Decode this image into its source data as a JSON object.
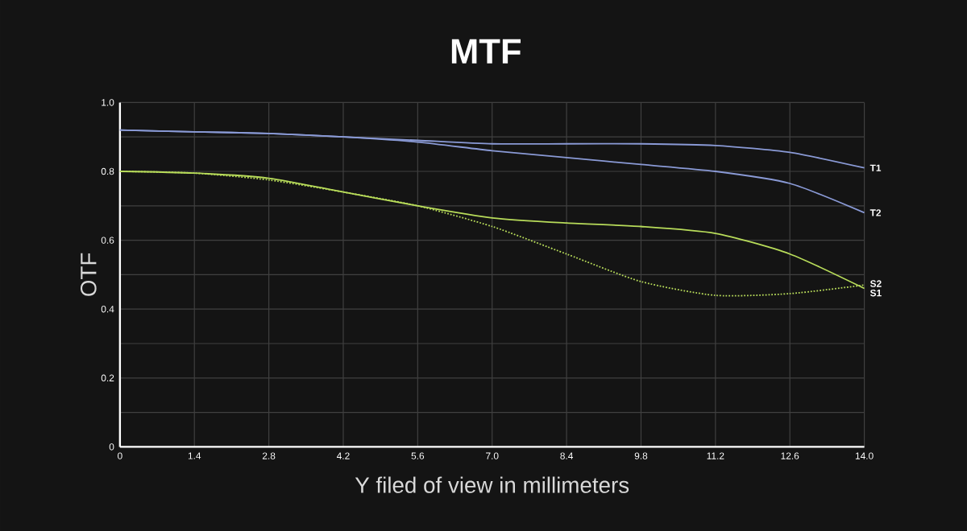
{
  "chart_data": {
    "type": "line",
    "title": "MTF",
    "xlabel": "Y filed of view in millimeters",
    "ylabel": "OTF",
    "x": [
      0,
      1.4,
      2.8,
      4.2,
      5.6,
      7.0,
      8.4,
      9.8,
      11.2,
      12.6,
      14.0
    ],
    "series": [
      {
        "name": "T1",
        "color": "#8a9ad6",
        "line_style": "solid",
        "values": [
          0.92,
          0.915,
          0.91,
          0.9,
          0.89,
          0.88,
          0.88,
          0.88,
          0.875,
          0.855,
          0.81
        ]
      },
      {
        "name": "T2",
        "color": "#8a9ad6",
        "line_style": "solid",
        "values": [
          0.92,
          0.915,
          0.91,
          0.9,
          0.885,
          0.86,
          0.84,
          0.82,
          0.8,
          0.765,
          0.68
        ]
      },
      {
        "name": "S2",
        "color": "#b8dc5a",
        "line_style": "solid",
        "values": [
          0.8,
          0.795,
          0.78,
          0.74,
          0.7,
          0.665,
          0.65,
          0.64,
          0.62,
          0.56,
          0.46
        ]
      },
      {
        "name": "S1",
        "color": "#b8dc5a",
        "line_style": "dotted",
        "values": [
          0.8,
          0.795,
          0.775,
          0.74,
          0.7,
          0.64,
          0.56,
          0.48,
          0.44,
          0.445,
          0.47
        ]
      }
    ],
    "xlim": [
      0,
      14.0
    ],
    "xticks": [
      0,
      1.4,
      2.8,
      4.2,
      5.6,
      {
        "value": 7.0,
        "label": "7.0"
      },
      8.4,
      9.8,
      11.2,
      12.6,
      {
        "value": 14.0,
        "label": "14.0"
      }
    ],
    "ylim": [
      0,
      1.0
    ],
    "yticks": [
      0,
      {
        "value": 0.1,
        "label": null
      },
      0.2,
      {
        "value": 0.3,
        "label": null
      },
      0.4,
      {
        "value": 0.5,
        "label": null
      },
      0.6,
      {
        "value": 0.7,
        "label": null
      },
      0.8,
      {
        "value": 0.9,
        "label": null
      },
      {
        "value": 1.0,
        "label": "1.0"
      }
    ],
    "grid": true,
    "marker": "none"
  }
}
